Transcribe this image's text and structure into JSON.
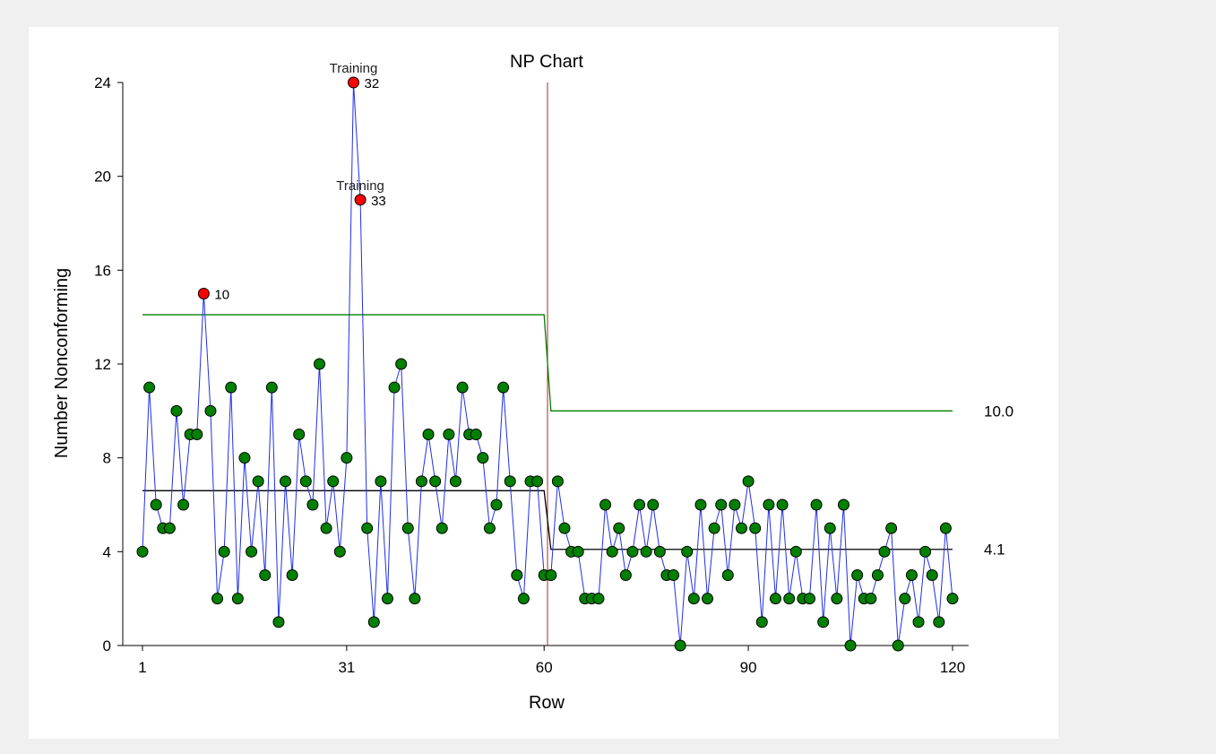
{
  "chart_data": {
    "type": "line",
    "title": "NP Chart",
    "xlabel": "Row",
    "ylabel": "Number Nonconforming",
    "xlim": [
      1,
      120
    ],
    "ylim": [
      0,
      24
    ],
    "x_ticks": [
      1,
      31,
      60,
      90,
      120
    ],
    "y_ticks": [
      0,
      4,
      8,
      12,
      16,
      20,
      24
    ],
    "grid": false,
    "legend": "none",
    "values": [
      4,
      11,
      6,
      5,
      5,
      10,
      6,
      9,
      9,
      15,
      10,
      2,
      4,
      11,
      2,
      8,
      4,
      7,
      3,
      11,
      1,
      7,
      3,
      9,
      7,
      6,
      12,
      5,
      7,
      4,
      8,
      24,
      19,
      5,
      1,
      7,
      2,
      11,
      12,
      5,
      2,
      7,
      9,
      7,
      5,
      9,
      7,
      11,
      9,
      9,
      8,
      5,
      6,
      11,
      7,
      3,
      2,
      7,
      7,
      3,
      3,
      7,
      5,
      4,
      4,
      2,
      2,
      2,
      6,
      4,
      5,
      3,
      4,
      6,
      4,
      6,
      4,
      3,
      3,
      0,
      4,
      2,
      6,
      2,
      5,
      6,
      3,
      6,
      5,
      7,
      5,
      1,
      6,
      2,
      6,
      2,
      4,
      2,
      2,
      6,
      1,
      5,
      2,
      6,
      0,
      3,
      2,
      2,
      3,
      4,
      5,
      0,
      2,
      3,
      1,
      4,
      3,
      1,
      5,
      2
    ],
    "phase_change_after": 60,
    "center_line": {
      "phase1": 6.6,
      "phase2": 4.1,
      "label": "4.1"
    },
    "upper_limit": {
      "phase1": 14.1,
      "phase2": 10.0,
      "label": "10.0"
    },
    "out_of_control": [
      {
        "x": 10,
        "label": "10",
        "note": ""
      },
      {
        "x": 32,
        "label": "32",
        "note": "Training"
      },
      {
        "x": 33,
        "label": "33",
        "note": "Training"
      }
    ],
    "colors": {
      "data_line": "#1f2fe8",
      "point_fill": "#008000",
      "out_point_fill": "#ff0000",
      "limit_line": "#008000",
      "center_line": "#000000",
      "phase_line": "#b22222",
      "background": "#f0f0f0",
      "panel": "#ffffff"
    }
  }
}
